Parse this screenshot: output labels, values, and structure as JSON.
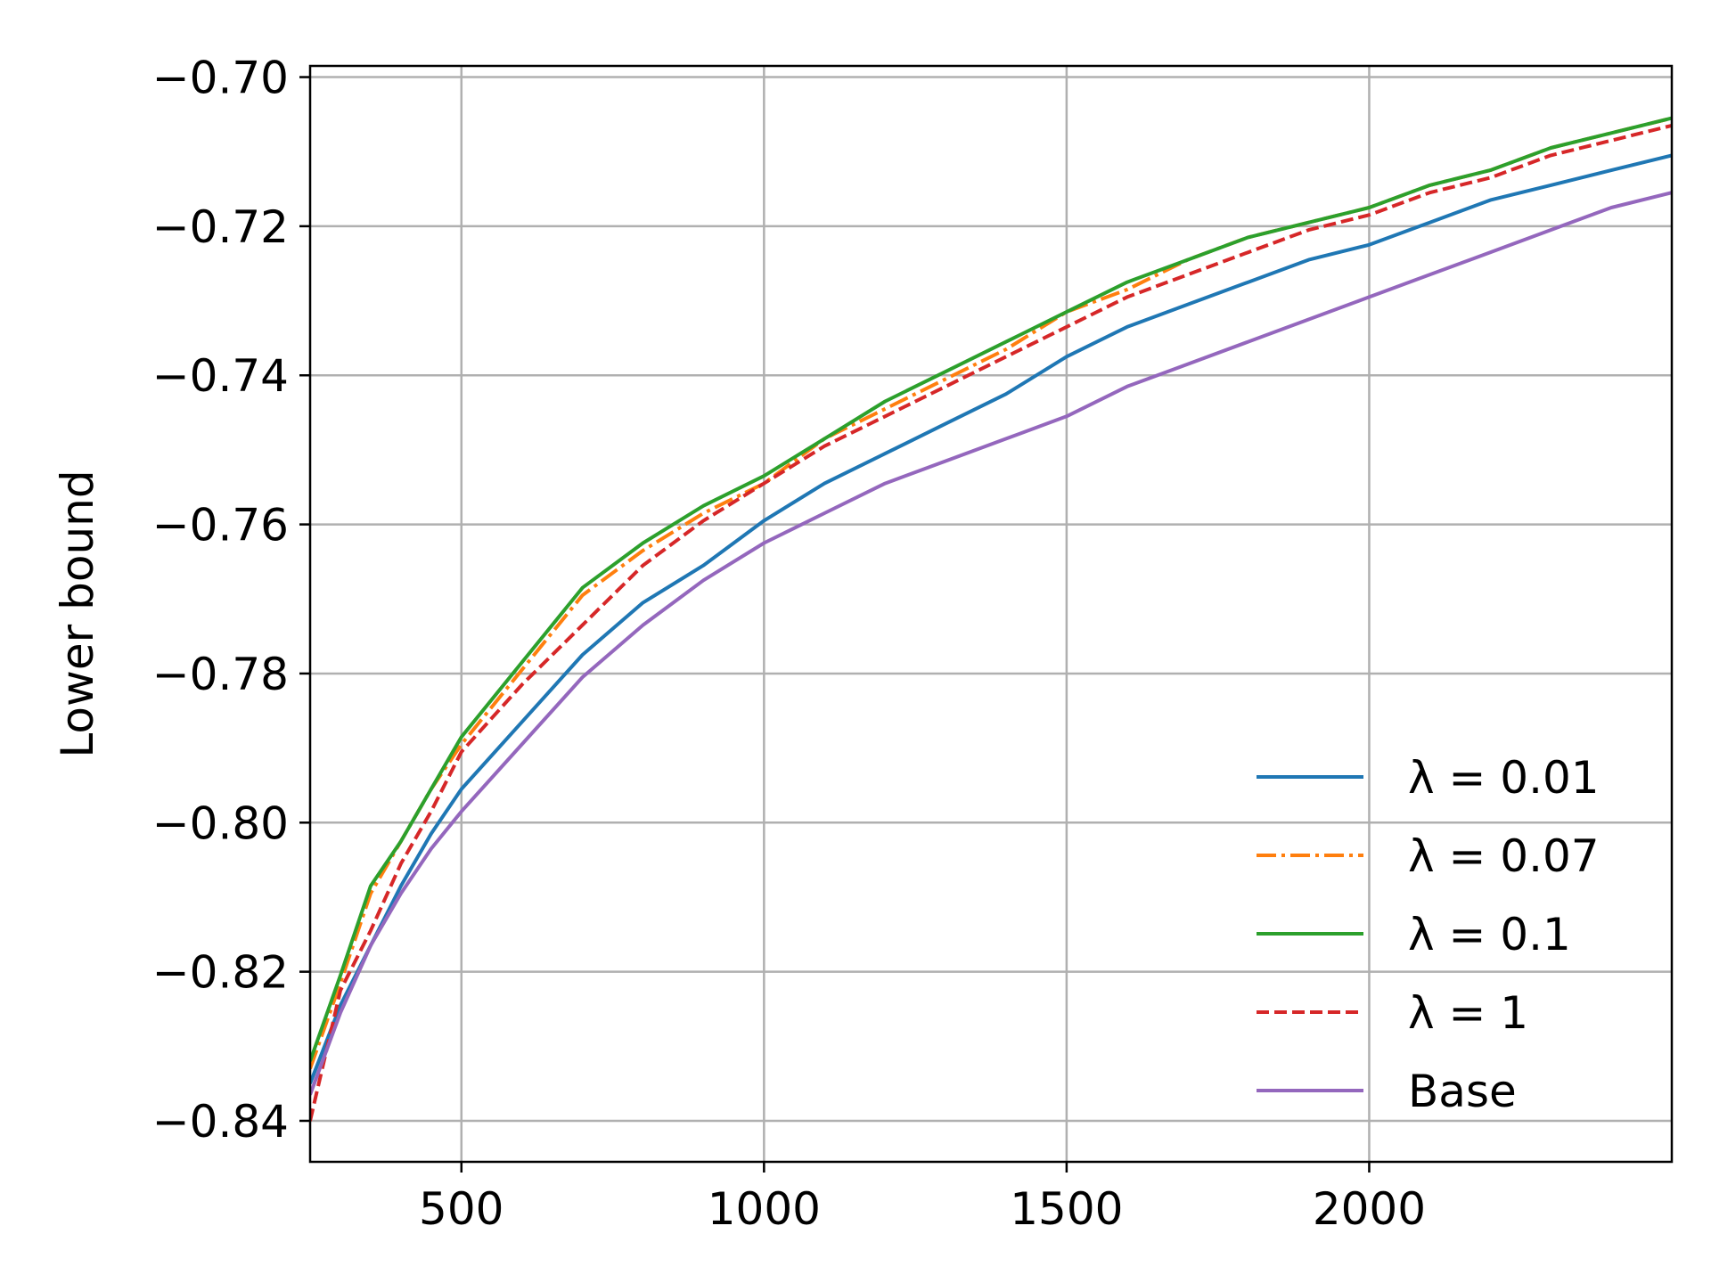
{
  "chart_data": {
    "type": "line",
    "title": "",
    "xlabel": "",
    "ylabel": "Lower bound",
    "xlim": [
      250,
      2500
    ],
    "ylim": [
      -0.8455,
      -0.6985
    ],
    "xticks": [
      500,
      1000,
      1500,
      2000
    ],
    "xtick_labels": [
      "500",
      "1000",
      "1500",
      "2000"
    ],
    "yticks": [
      -0.84,
      -0.82,
      -0.8,
      -0.78,
      -0.76,
      -0.74,
      -0.72,
      -0.7
    ],
    "ytick_labels": [
      "−0.84",
      "−0.82",
      "−0.80",
      "−0.78",
      "−0.76",
      "−0.74",
      "−0.72",
      "−0.70"
    ],
    "grid": true,
    "legend_position": "lower-right",
    "series": [
      {
        "name": "λ = 0.01",
        "color": "#1f77b4",
        "dash": "solid",
        "x": [
          250,
          300,
          350,
          400,
          450,
          500,
          600,
          700,
          800,
          900,
          1000,
          1100,
          1200,
          1300,
          1400,
          1500,
          1600,
          1700,
          1800,
          1900,
          2000,
          2100,
          2200,
          2300,
          2400,
          2500
        ],
        "y": [
          -0.835,
          -0.8245,
          -0.8165,
          -0.8085,
          -0.8015,
          -0.7955,
          -0.7865,
          -0.7775,
          -0.7705,
          -0.7655,
          -0.7595,
          -0.7545,
          -0.7505,
          -0.7465,
          -0.7425,
          -0.7375,
          -0.7335,
          -0.7305,
          -0.7275,
          -0.7245,
          -0.7225,
          -0.7195,
          -0.7165,
          -0.7145,
          -0.7125,
          -0.7105
        ]
      },
      {
        "name": "λ = 0.07",
        "color": "#ff7f0e",
        "dash": "dashdot",
        "x": [
          250,
          300,
          350,
          400,
          450,
          500,
          600,
          700,
          800,
          900,
          1000,
          1100,
          1200,
          1300,
          1400,
          1500,
          1600,
          1700,
          1800,
          1900,
          2000,
          2100,
          2200,
          2300,
          2400,
          2500
        ],
        "y": [
          -0.833,
          -0.8215,
          -0.8095,
          -0.8025,
          -0.7955,
          -0.7895,
          -0.7795,
          -0.7695,
          -0.7635,
          -0.7585,
          -0.7545,
          -0.7485,
          -0.7445,
          -0.7405,
          -0.7365,
          -0.7315,
          -0.7285,
          -0.7245,
          -0.7215,
          -0.7195,
          -0.7175,
          -0.7145,
          -0.7125,
          -0.7095,
          -0.7075,
          -0.7055
        ]
      },
      {
        "name": "λ = 0.1",
        "color": "#2ca02c",
        "dash": "solid",
        "x": [
          250,
          300,
          350,
          400,
          450,
          500,
          600,
          700,
          800,
          900,
          1000,
          1100,
          1200,
          1300,
          1400,
          1500,
          1600,
          1700,
          1800,
          1900,
          2000,
          2100,
          2200,
          2300,
          2400,
          2500
        ],
        "y": [
          -0.832,
          -0.8205,
          -0.8085,
          -0.8025,
          -0.7955,
          -0.7885,
          -0.7785,
          -0.7685,
          -0.7625,
          -0.7575,
          -0.7535,
          -0.7485,
          -0.7435,
          -0.7395,
          -0.7355,
          -0.7315,
          -0.7275,
          -0.7245,
          -0.7215,
          -0.7195,
          -0.7175,
          -0.7145,
          -0.7125,
          -0.7095,
          -0.7075,
          -0.7055
        ]
      },
      {
        "name": "λ =  1",
        "color": "#d62728",
        "dash": "dashed",
        "x": [
          250,
          300,
          350,
          400,
          450,
          500,
          600,
          700,
          800,
          900,
          1000,
          1100,
          1200,
          1300,
          1400,
          1500,
          1600,
          1700,
          1800,
          1900,
          2000,
          2100,
          2200,
          2300,
          2400,
          2500
        ],
        "y": [
          -0.84,
          -0.8225,
          -0.8145,
          -0.8055,
          -0.7985,
          -0.7905,
          -0.7815,
          -0.7735,
          -0.7655,
          -0.7595,
          -0.7545,
          -0.7495,
          -0.7455,
          -0.7415,
          -0.7375,
          -0.7335,
          -0.7295,
          -0.7265,
          -0.7235,
          -0.7205,
          -0.7185,
          -0.7155,
          -0.7135,
          -0.7105,
          -0.7085,
          -0.7065
        ]
      },
      {
        "name": "Base",
        "color": "#9467bd",
        "dash": "solid",
        "x": [
          250,
          300,
          350,
          400,
          450,
          500,
          600,
          700,
          800,
          900,
          1000,
          1100,
          1200,
          1300,
          1400,
          1500,
          1600,
          1700,
          1800,
          1900,
          2000,
          2100,
          2200,
          2300,
          2400,
          2500
        ],
        "y": [
          -0.8365,
          -0.8255,
          -0.8165,
          -0.8095,
          -0.8035,
          -0.7985,
          -0.7895,
          -0.7805,
          -0.7735,
          -0.7675,
          -0.7625,
          -0.7585,
          -0.7545,
          -0.7515,
          -0.7485,
          -0.7455,
          -0.7415,
          -0.7385,
          -0.7355,
          -0.7325,
          -0.7295,
          -0.7265,
          -0.7235,
          -0.7205,
          -0.7175,
          -0.7155
        ]
      }
    ]
  }
}
